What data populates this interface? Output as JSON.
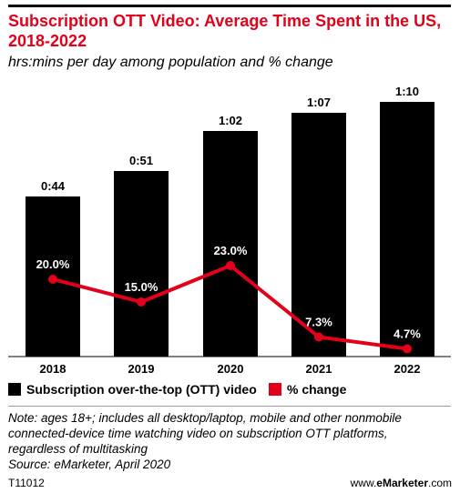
{
  "header": {
    "title": "Subscription OTT Video: Average Time Spent in the US, 2018-2022",
    "subtitle": "hrs:mins per day among population and % change"
  },
  "chart_data": {
    "type": "bar",
    "categories": [
      "2018",
      "2019",
      "2020",
      "2021",
      "2022"
    ],
    "series": [
      {
        "name": "Subscription over-the-top (OTT) video",
        "kind": "bar",
        "values": [
          44,
          51,
          62,
          67,
          70
        ],
        "labels": [
          "0:44",
          "0:51",
          "1:02",
          "1:07",
          "1:10"
        ],
        "color": "#000000"
      },
      {
        "name": "% change",
        "kind": "line",
        "values": [
          20.0,
          15.0,
          23.0,
          7.3,
          4.7
        ],
        "labels": [
          "20.0%",
          "15.0%",
          "23.0%",
          "7.3%",
          "4.7%"
        ],
        "color": "#e4001b"
      }
    ],
    "legend_position": "bottom",
    "grid": false
  },
  "legend": {
    "bar_label": "Subscription over-the-top (OTT) video",
    "line_label": "% change"
  },
  "footer": {
    "note_line1": "Note: ages 18+; includes all desktop/laptop, mobile and other nonmobile",
    "note_line2": "connected-device time watching video on subscription OTT platforms,",
    "note_line3": "regardless of multitasking",
    "source": "Source: eMarketer, April 2020",
    "code": "T11012",
    "site_prefix": "www.",
    "site_brand": "eMarketer",
    "site_suffix": ".com"
  }
}
